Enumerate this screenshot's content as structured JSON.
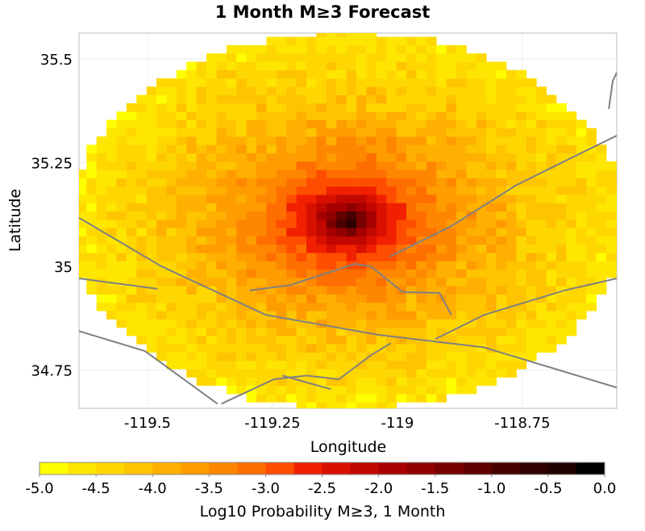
{
  "chart_data": {
    "type": "heatmap",
    "title": "1 Month M≥3 Forecast",
    "xlabel": "Longitude",
    "ylabel": "Latitude",
    "xlim": [
      -119.637,
      -118.561
    ],
    "ylim": [
      34.658,
      35.562
    ],
    "x_ticks": [
      {
        "value": -119.5,
        "label": "-119.5"
      },
      {
        "value": -119.25,
        "label": "-119.25"
      },
      {
        "value": -119.0,
        "label": "-119"
      },
      {
        "value": -118.75,
        "label": "-118.75"
      }
    ],
    "y_ticks": [
      {
        "value": 35.5,
        "label": "35.5"
      },
      {
        "value": 35.25,
        "label": "35.25"
      },
      {
        "value": 35.0,
        "label": "35"
      },
      {
        "value": 34.75,
        "label": "34.75"
      }
    ],
    "grid": true,
    "field": {
      "cell_size_deg": 0.02,
      "center_lon": -119.1,
      "center_lat": 35.11,
      "peak_log10_probability": -0.3,
      "decay_coefficient": 1.3,
      "core_radius_deg": 0.01,
      "extent_radius_deg": 0.455,
      "noise_amplitude": 0.25
    },
    "colorbar": {
      "label": "Log10 Probability M≥3, 1 Month",
      "range": [
        -5.0,
        0.0
      ],
      "step": 0.25,
      "tick_labels": [
        "-5.0",
        "-4.5",
        "-4.0",
        "-3.5",
        "-3.0",
        "-2.5",
        "-2.0",
        "-1.5",
        "-1.0",
        "-0.5",
        "0.0"
      ],
      "colors": [
        "#ffff00",
        "#ffe600",
        "#ffd700",
        "#ffc400",
        "#ffb000",
        "#ff9c00",
        "#ff8700",
        "#ff6e00",
        "#ff4d00",
        "#f02000",
        "#d91000",
        "#c00800",
        "#a80000",
        "#900000",
        "#780000",
        "#600000",
        "#480000",
        "#300000",
        "#200000",
        "#000000"
      ]
    },
    "fault_traces": [
      [
        [
          -119.637,
          35.117
        ],
        [
          -119.472,
          35.0
        ],
        [
          -119.263,
          34.883
        ],
        [
          -119.037,
          34.835
        ],
        [
          -118.827,
          34.805
        ],
        [
          -118.561,
          34.708
        ]
      ],
      [
        [
          -119.016,
          35.023
        ],
        [
          -118.892,
          35.097
        ],
        [
          -118.763,
          35.195
        ],
        [
          -118.666,
          35.253
        ],
        [
          -118.561,
          35.315
        ]
      ],
      [
        [
          -119.295,
          34.942
        ],
        [
          -119.214,
          34.955
        ],
        [
          -119.085,
          35.006
        ],
        [
          -119.053,
          35.0
        ],
        [
          -118.989,
          34.938
        ],
        [
          -118.916,
          34.936
        ],
        [
          -118.892,
          34.883
        ]
      ],
      [
        [
          -118.924,
          34.825
        ],
        [
          -118.827,
          34.883
        ],
        [
          -118.666,
          34.942
        ],
        [
          -118.561,
          34.971
        ]
      ],
      [
        [
          -119.637,
          34.971
        ],
        [
          -119.48,
          34.946
        ]
      ],
      [
        [
          -119.637,
          34.844
        ],
        [
          -119.505,
          34.796
        ],
        [
          -119.36,
          34.669
        ]
      ],
      [
        [
          -119.352,
          34.669
        ],
        [
          -119.247,
          34.728
        ],
        [
          -119.182,
          34.737
        ],
        [
          -119.117,
          34.728
        ],
        [
          -119.053,
          34.786
        ],
        [
          -119.013,
          34.815
        ]
      ],
      [
        [
          -119.23,
          34.737
        ],
        [
          -119.133,
          34.704
        ]
      ],
      [
        [
          -118.561,
          35.467
        ],
        [
          -118.569,
          35.447
        ],
        [
          -118.577,
          35.379
        ]
      ]
    ]
  }
}
